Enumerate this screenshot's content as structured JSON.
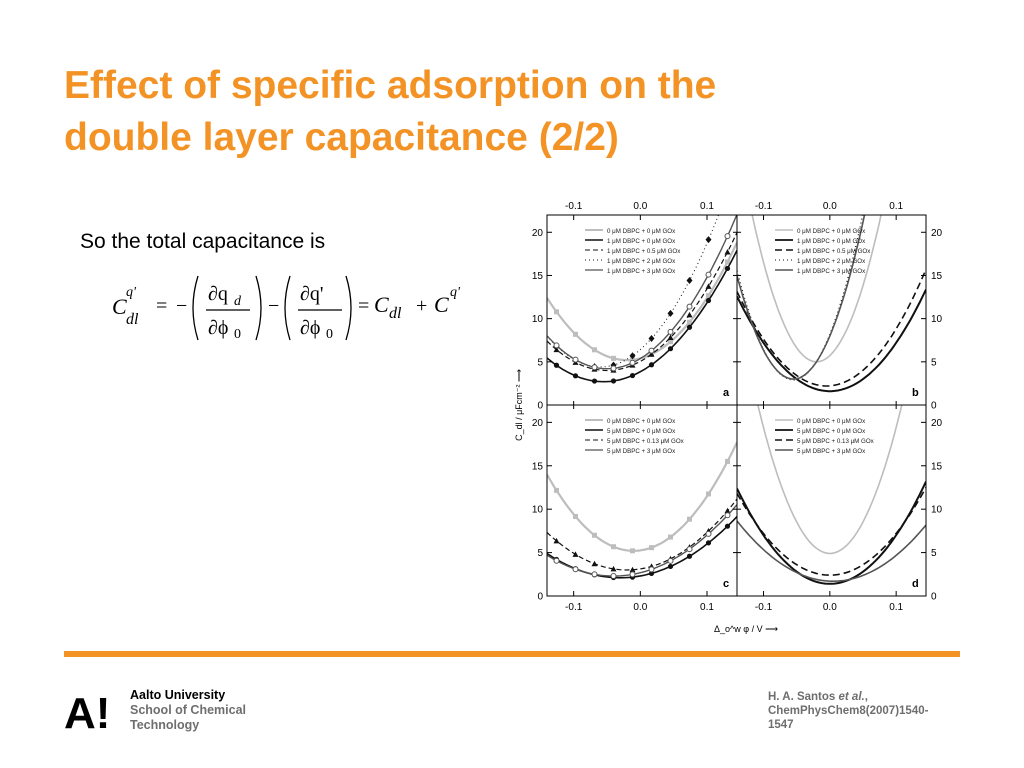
{
  "slide": {
    "title_line1": "Effect of specific adsorption on the",
    "title_line2": "double layer capacitance (2/2)",
    "intro": "So the total capacitance is"
  },
  "equation": {
    "lhs_symbol": "C",
    "lhs_sub": "dl",
    "lhs_sup": "q'",
    "term1_num": "∂q",
    "term1_num_sub": "d",
    "term2_num": "∂q'",
    "den": "∂ϕ",
    "den_sub": "0",
    "rhs1": "C",
    "rhs1_sub": "dl",
    "plus": "+",
    "rhs2": "C",
    "rhs2_sup": "q'"
  },
  "figure": {
    "top_ticks": [
      "-0.1",
      "0.0",
      "0.1",
      "-0.1",
      "0.0",
      "0.1"
    ],
    "bottom_ticks": [
      "-0.1",
      "0.0",
      "0.1",
      "-0.1",
      "0.0",
      "0.1"
    ],
    "y_ticks": [
      "0",
      "5",
      "10",
      "15",
      "20"
    ],
    "ylabel": "C_dl / μFcm⁻² ⟶",
    "xlabel": "Δ_o^w φ / V ⟶",
    "colors": {
      "light": "#bdbdbd",
      "dark": "#111111",
      "mid": "#555555"
    },
    "panels": [
      {
        "id": "a",
        "label": "a",
        "legend": [
          "0 μM DBPC + 0 μM GOx",
          "1 μM DBPC + 0 μM GOx",
          "1 μM DBPC + 0.5 μM GOx",
          "1 μM DBPC + 2 μM GOx",
          "1 μM DBPC + 3 μM GOx"
        ]
      },
      {
        "id": "b",
        "label": "b",
        "legend": [
          "0 μM DBPC + 0 μM GOx",
          "1 μM DBPC + 0 μM GOx",
          "1 μM DBPC + 0.5 μM GOx",
          "1 μM DBPC + 2 μM GOx",
          "1 μM DBPC + 3 μM GOx"
        ]
      },
      {
        "id": "c",
        "label": "c",
        "legend": [
          "0 μM DBPC + 0 μM GOx",
          "5 μM DBPC + 0 μM GOx",
          "5 μM DBPC + 0.13 μM GOx",
          "5 μM DBPC + 3 μM GOx"
        ]
      },
      {
        "id": "d",
        "label": "d",
        "legend": [
          "0 μM DBPC + 0 μM GOx",
          "5 μM DBPC + 0 μM GOx",
          "5 μM DBPC + 0.13 μM GOx",
          "5 μM DBPC + 3 μM GOx"
        ]
      }
    ]
  },
  "footer": {
    "logo": "A!",
    "uni_line1": "Aalto University",
    "uni_line2": "School of Chemical",
    "uni_line3": "Technology",
    "ref_line1a": "H. A. Santos ",
    "ref_line1b": "et al.",
    "ref_line1c": ",",
    "ref_line2": "ChemPhysChem8(2007)1540-",
    "ref_line3": "1547"
  }
}
